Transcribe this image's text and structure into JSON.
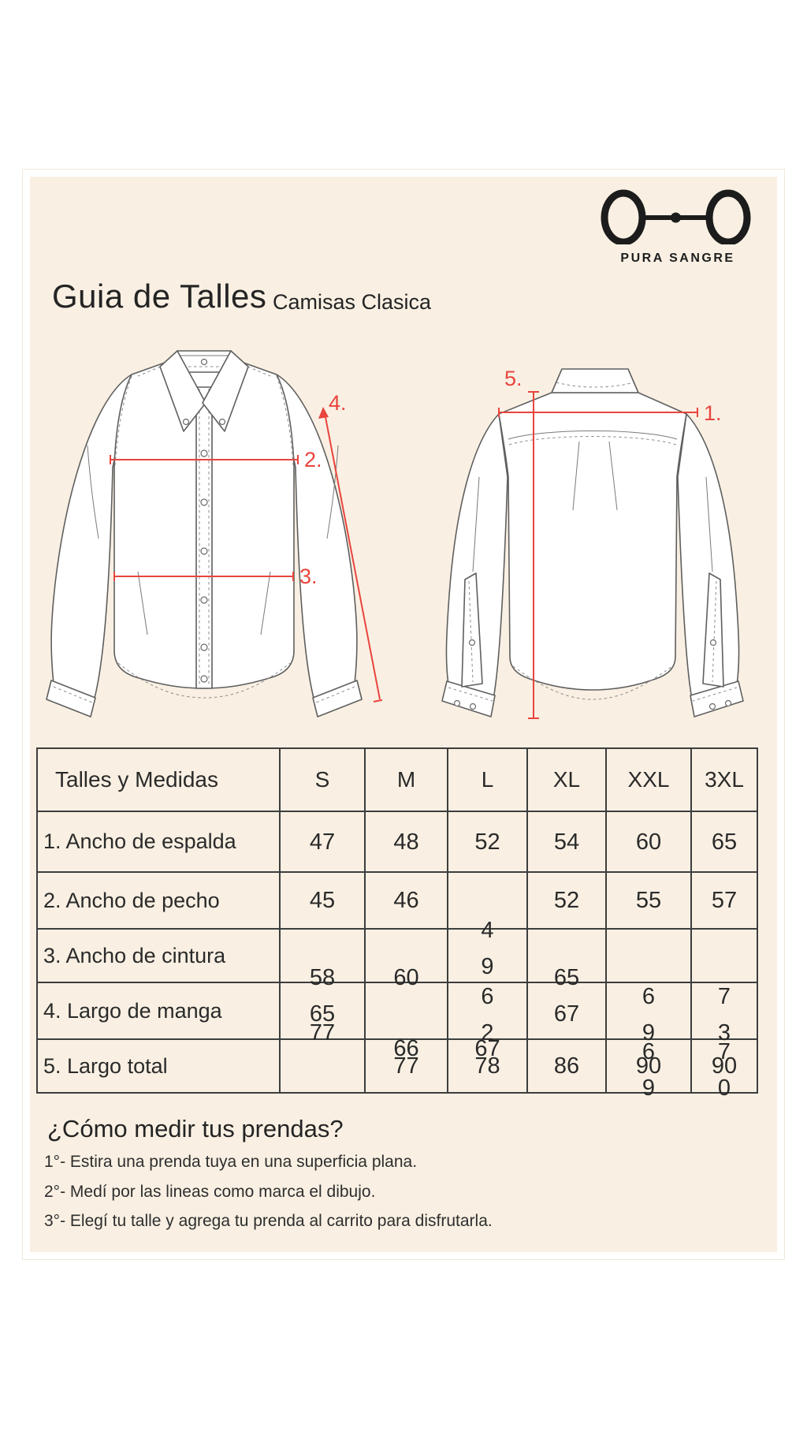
{
  "colors": {
    "accent_red": "#e8453e",
    "panel": "#f9f0e3",
    "ink": "#2a2a2a"
  },
  "brand": {
    "name": "PURA SANGRE"
  },
  "header": {
    "title": "Guia de Talles",
    "subtitle": "Camisas Clasica"
  },
  "diagram": {
    "front": {
      "chest_label": "2.",
      "waist_label": "3.",
      "sleeve_label": "4."
    },
    "back": {
      "shoulder_label": "1.",
      "length_label": "5."
    }
  },
  "size_table": {
    "columns": [
      "Talles y Medidas",
      "S",
      "M",
      "L",
      "XL",
      "XXL",
      "3XL"
    ],
    "rows": [
      {
        "label": "1. Ancho de espalda",
        "cells": [
          {
            "lines": [
              "47"
            ],
            "pos": "center"
          },
          {
            "lines": [
              "48"
            ],
            "pos": "center"
          },
          {
            "lines": [
              "52"
            ],
            "pos": "center"
          },
          {
            "lines": [
              "54"
            ],
            "pos": "center"
          },
          {
            "lines": [
              "60"
            ],
            "pos": "center"
          },
          {
            "lines": [
              "65"
            ],
            "pos": "center"
          }
        ]
      },
      {
        "label": "2. Ancho de pecho",
        "cells": [
          {
            "lines": [
              "45"
            ],
            "pos": "center"
          },
          {
            "lines": [
              "46"
            ],
            "pos": "center"
          },
          {
            "lines": [
              "4",
              "9"
            ],
            "pos": "stack-mid"
          },
          {
            "lines": [
              "52"
            ],
            "pos": "center"
          },
          {
            "lines": [
              "55"
            ],
            "pos": "center"
          },
          {
            "lines": [
              "57"
            ],
            "pos": "center"
          }
        ]
      },
      {
        "label": "3. Ancho de cintura",
        "cells": [
          {
            "lines": [
              "58",
              "65"
            ],
            "pos": "stack-high"
          },
          {
            "lines": [
              "60"
            ],
            "pos": "high"
          },
          {
            "lines": [
              "6",
              "2"
            ],
            "pos": "stack-low"
          },
          {
            "lines": [
              "65",
              "67"
            ],
            "pos": "stack-high"
          },
          {
            "lines": [
              "6",
              "9"
            ],
            "pos": "stack-low"
          },
          {
            "lines": [
              "7",
              "3"
            ],
            "pos": "stack-low"
          }
        ]
      },
      {
        "label": "4. Largo de manga",
        "cells": [
          {
            "lines": [
              "77"
            ],
            "pos": "high"
          },
          {
            "lines": [
              "66"
            ],
            "pos": "low"
          },
          {
            "lines": [
              "67"
            ],
            "pos": "low"
          },
          {
            "lines": [],
            "pos": "center"
          },
          {
            "lines": [
              "6",
              "9"
            ],
            "pos": "stack-low"
          },
          {
            "lines": [
              "7",
              "0"
            ],
            "pos": "stack-low"
          }
        ]
      },
      {
        "label": "5. Largo total",
        "cells": [
          {
            "lines": [],
            "pos": "center"
          },
          {
            "lines": [
              "77"
            ],
            "pos": "center"
          },
          {
            "lines": [
              "78"
            ],
            "pos": "center"
          },
          {
            "lines": [
              "86"
            ],
            "pos": "center"
          },
          {
            "lines": [
              "90"
            ],
            "pos": "center"
          },
          {
            "lines": [
              "90"
            ],
            "pos": "center"
          }
        ]
      }
    ]
  },
  "how_to": {
    "title": "¿Cómo medir tus prendas?",
    "steps": [
      "1°- Estira una prenda tuya en una superficia plana.",
      "2°- Medí por las lineas como marca el dibujo.",
      "3°- Elegí tu talle y agrega tu prenda al carrito para disfrutarla."
    ]
  }
}
